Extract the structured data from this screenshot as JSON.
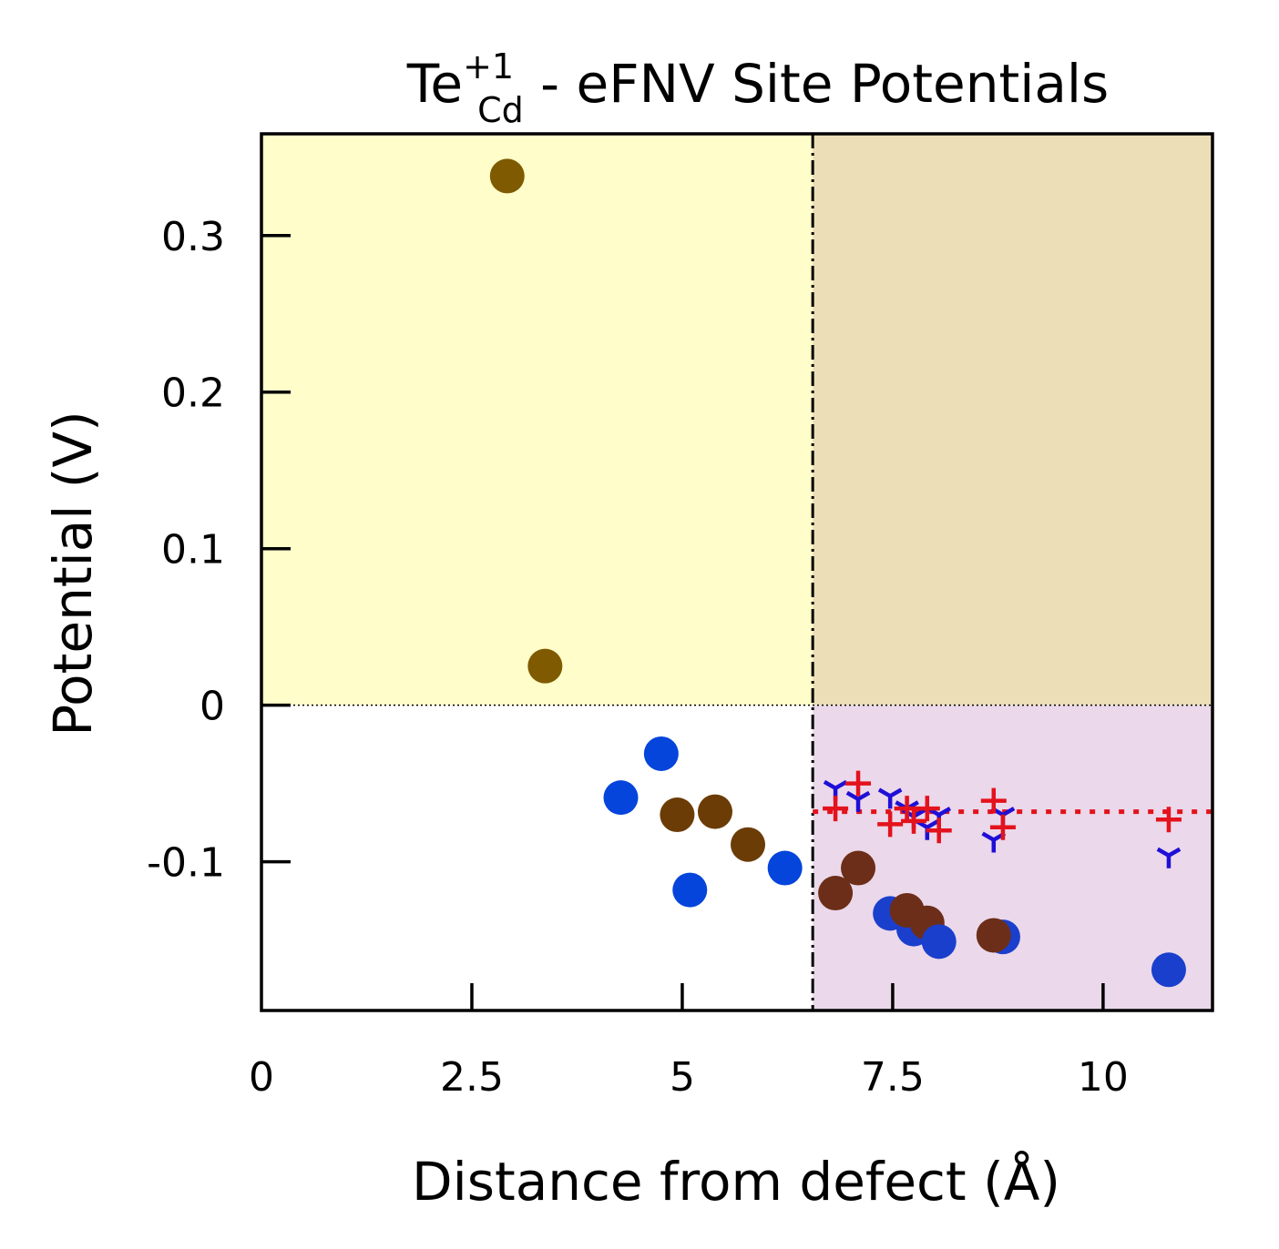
{
  "chart_data": {
    "type": "scatter",
    "title": {
      "base": "Te",
      "superscript": "+1",
      "subscript": "Cd",
      "rest": " - eFNV Site Potentials"
    },
    "xlabel": "Distance from defect (Å)",
    "ylabel": "Potential (V)",
    "xlim": [
      0,
      11.3
    ],
    "ylim": [
      -0.195,
      0.365
    ],
    "xticks": [
      {
        "value": 0,
        "label": "0"
      },
      {
        "value": 2.5,
        "label": "2.5"
      },
      {
        "value": 5,
        "label": "5"
      },
      {
        "value": 7.5,
        "label": "7.5"
      },
      {
        "value": 10,
        "label": "10"
      }
    ],
    "yticks": [
      {
        "value": -0.1,
        "label": "-0.1"
      },
      {
        "value": 0,
        "label": "0"
      },
      {
        "value": 0.1,
        "label": "0.1"
      },
      {
        "value": 0.2,
        "label": "0.2"
      },
      {
        "value": 0.3,
        "label": "0.3"
      }
    ],
    "sampling_region_start": 6.55,
    "average_potential": -0.068,
    "grid": false,
    "background_regions": {
      "positive_unsampled": "#fffdc9",
      "positive_sampled": "#ecdfb8",
      "negative_unsampled": "#ffffff",
      "negative_sampled": "#ebd8ea"
    },
    "series": [
      {
        "marker": "circle",
        "points": [
          {
            "x": 2.92,
            "y": 0.338,
            "color": "#7f5a00"
          },
          {
            "x": 3.37,
            "y": 0.025,
            "color": "#7f5a00"
          },
          {
            "x": 4.27,
            "y": -0.059,
            "color": "#0545dc"
          },
          {
            "x": 4.75,
            "y": -0.031,
            "color": "#0545dc"
          },
          {
            "x": 4.94,
            "y": -0.07,
            "color": "#6b3c06"
          },
          {
            "x": 5.09,
            "y": -0.118,
            "color": "#0545dc"
          },
          {
            "x": 5.39,
            "y": -0.068,
            "color": "#6b3c06"
          },
          {
            "x": 5.78,
            "y": -0.089,
            "color": "#6b3c06"
          },
          {
            "x": 6.22,
            "y": -0.104,
            "color": "#0545dc"
          },
          {
            "x": 6.82,
            "y": -0.12,
            "color": "#6c2e19"
          },
          {
            "x": 7.09,
            "y": -0.104,
            "color": "#6c2e19"
          },
          {
            "x": 7.47,
            "y": -0.133,
            "color": "#1a3fcc"
          },
          {
            "x": 7.75,
            "y": -0.143,
            "color": "#1a3fcc"
          },
          {
            "x": 7.67,
            "y": -0.131,
            "color": "#6c2e19"
          },
          {
            "x": 7.91,
            "y": -0.139,
            "color": "#6c2e19"
          },
          {
            "x": 8.05,
            "y": -0.151,
            "color": "#1a3fcc"
          },
          {
            "x": 8.81,
            "y": -0.148,
            "color": "#1a3fcc"
          },
          {
            "x": 8.7,
            "y": -0.147,
            "color": "#6c2e19"
          },
          {
            "x": 10.78,
            "y": -0.169,
            "color": "#1a3fcc"
          }
        ]
      },
      {
        "marker": "tri-down",
        "color": "#1f0fd6",
        "points": [
          {
            "x": 6.82,
            "y": -0.053
          },
          {
            "x": 7.09,
            "y": -0.06
          },
          {
            "x": 7.47,
            "y": -0.058
          },
          {
            "x": 7.67,
            "y": -0.066
          },
          {
            "x": 7.75,
            "y": -0.071
          },
          {
            "x": 7.91,
            "y": -0.078
          },
          {
            "x": 8.05,
            "y": -0.07
          },
          {
            "x": 8.7,
            "y": -0.086
          },
          {
            "x": 8.81,
            "y": -0.07
          },
          {
            "x": 10.78,
            "y": -0.096
          }
        ]
      },
      {
        "marker": "plus",
        "color": "#e3121c",
        "points": [
          {
            "x": 6.82,
            "y": -0.066
          },
          {
            "x": 7.09,
            "y": -0.05
          },
          {
            "x": 7.47,
            "y": -0.076
          },
          {
            "x": 7.67,
            "y": -0.066
          },
          {
            "x": 7.75,
            "y": -0.074
          },
          {
            "x": 7.91,
            "y": -0.066
          },
          {
            "x": 8.05,
            "y": -0.08
          },
          {
            "x": 8.7,
            "y": -0.061
          },
          {
            "x": 8.81,
            "y": -0.078
          },
          {
            "x": 10.78,
            "y": -0.073
          }
        ]
      }
    ]
  }
}
